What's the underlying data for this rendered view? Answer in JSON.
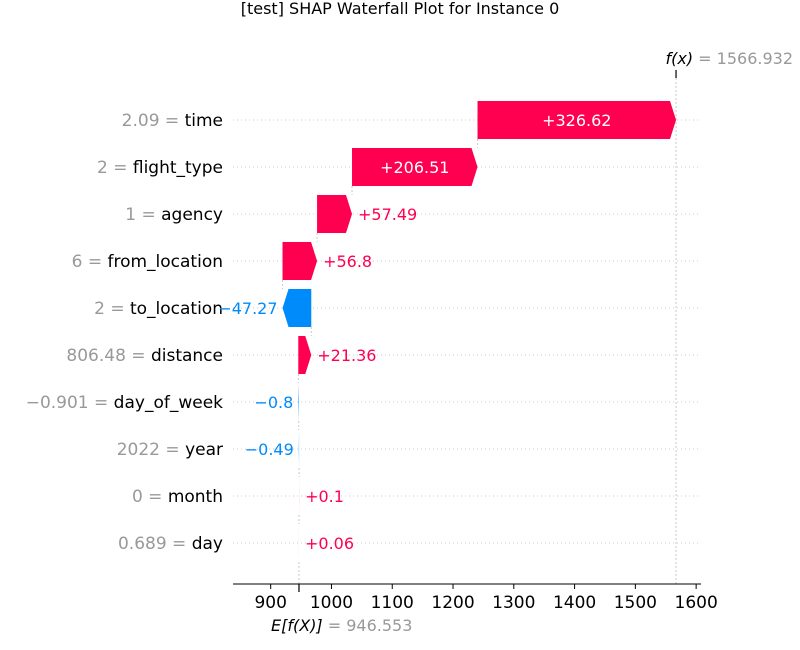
{
  "chart_data": {
    "type": "waterfall",
    "title": "[test] SHAP Waterfall Plot for Instance 0",
    "base_value": 946.553,
    "base_value_text": "946.553",
    "base_label_prefix": "E[f(X)]",
    "fx_value": 1566.932,
    "fx_value_text": "1566.932",
    "fx_label_prefix": "f(x)",
    "equals": "=",
    "xlim": [
      838,
      1608
    ],
    "ticks": [
      900,
      1000,
      1100,
      1200,
      1300,
      1400,
      1500,
      1600
    ],
    "tick_labels": [
      "900",
      "1000",
      "1100",
      "1200",
      "1300",
      "1400",
      "1500",
      "1600"
    ],
    "grid": "dotted horizontal row guides",
    "colors": {
      "positive": "#ff0051",
      "negative": "#008bfb",
      "muted": "#999999",
      "text": "#000000"
    },
    "features": [
      {
        "value": "2.09",
        "name": "time",
        "shap": 326.62,
        "label": "+326.62"
      },
      {
        "value": "2",
        "name": "flight_type",
        "shap": 206.51,
        "label": "+206.51"
      },
      {
        "value": "1",
        "name": "agency",
        "shap": 57.49,
        "label": "+57.49"
      },
      {
        "value": "6",
        "name": "from_location",
        "shap": 56.8,
        "label": "+56.8"
      },
      {
        "value": "2",
        "name": "to_location",
        "shap": -47.27,
        "label": "−47.27"
      },
      {
        "value": "806.48",
        "name": "distance",
        "shap": 21.36,
        "label": "+21.36"
      },
      {
        "value": "−0.901",
        "name": "day_of_week",
        "shap": -0.8,
        "label": "−0.8"
      },
      {
        "value": "2022",
        "name": "year",
        "shap": -0.49,
        "label": "−0.49"
      },
      {
        "value": "0",
        "name": "month",
        "shap": 0.1,
        "label": "+0.1"
      },
      {
        "value": "0.689",
        "name": "day",
        "shap": 0.06,
        "label": "+0.06"
      }
    ]
  }
}
